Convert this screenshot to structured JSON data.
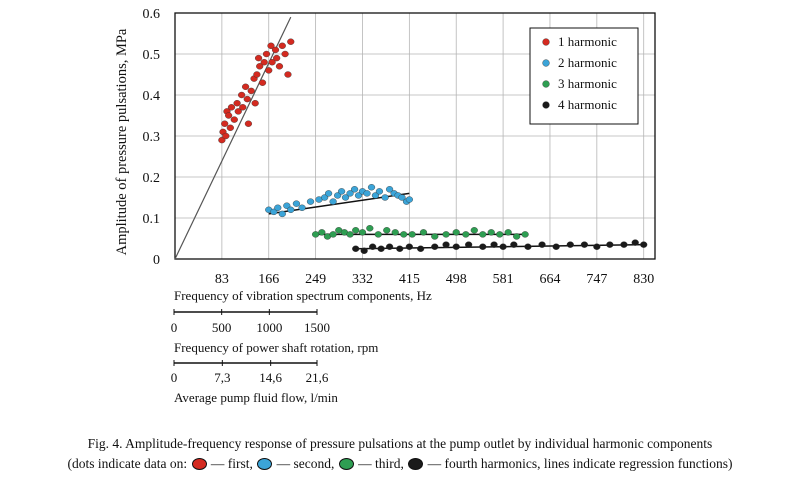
{
  "chart_data": {
    "type": "scatter",
    "ylabel": "Amplitude of pressure pulsations, MPa",
    "xlabel": "Frequency of vibration spectrum components, Hz",
    "xlim": [
      0,
      850
    ],
    "ylim": [
      0,
      0.6
    ],
    "x_ticks": [
      "83",
      "166",
      "249",
      "332",
      "415",
      "498",
      "581",
      "664",
      "747",
      "830"
    ],
    "y_ticks": [
      "0",
      "0.1",
      "0.2",
      "0.3",
      "0.4",
      "0.5",
      "0.6"
    ],
    "grid": true,
    "legend_position": "top-right",
    "series": [
      {
        "name": "1 harmonic",
        "color": "#d42a20",
        "points": [
          [
            83,
            0.29
          ],
          [
            85,
            0.31
          ],
          [
            88,
            0.33
          ],
          [
            90,
            0.3
          ],
          [
            92,
            0.36
          ],
          [
            95,
            0.35
          ],
          [
            98,
            0.32
          ],
          [
            100,
            0.37
          ],
          [
            105,
            0.34
          ],
          [
            110,
            0.38
          ],
          [
            112,
            0.36
          ],
          [
            118,
            0.4
          ],
          [
            120,
            0.37
          ],
          [
            125,
            0.42
          ],
          [
            128,
            0.39
          ],
          [
            130,
            0.33
          ],
          [
            135,
            0.41
          ],
          [
            140,
            0.44
          ],
          [
            142,
            0.38
          ],
          [
            145,
            0.45
          ],
          [
            148,
            0.49
          ],
          [
            150,
            0.47
          ],
          [
            155,
            0.43
          ],
          [
            158,
            0.48
          ],
          [
            162,
            0.5
          ],
          [
            166,
            0.46
          ],
          [
            170,
            0.52
          ],
          [
            172,
            0.48
          ],
          [
            178,
            0.51
          ],
          [
            180,
            0.49
          ],
          [
            185,
            0.47
          ],
          [
            190,
            0.52
          ],
          [
            195,
            0.5
          ],
          [
            200,
            0.45
          ],
          [
            205,
            0.53
          ]
        ],
        "regression": [
          [
            0,
            0
          ],
          [
            205,
            0.59
          ]
        ]
      },
      {
        "name": "2 harmonic",
        "color": "#3ba4d8",
        "points": [
          [
            166,
            0.12
          ],
          [
            175,
            0.115
          ],
          [
            182,
            0.125
          ],
          [
            190,
            0.11
          ],
          [
            198,
            0.13
          ],
          [
            205,
            0.12
          ],
          [
            215,
            0.135
          ],
          [
            225,
            0.125
          ],
          [
            240,
            0.14
          ],
          [
            255,
            0.145
          ],
          [
            265,
            0.15
          ],
          [
            272,
            0.16
          ],
          [
            280,
            0.14
          ],
          [
            288,
            0.155
          ],
          [
            295,
            0.165
          ],
          [
            302,
            0.15
          ],
          [
            310,
            0.16
          ],
          [
            318,
            0.17
          ],
          [
            325,
            0.155
          ],
          [
            332,
            0.165
          ],
          [
            340,
            0.16
          ],
          [
            348,
            0.175
          ],
          [
            355,
            0.155
          ],
          [
            362,
            0.165
          ],
          [
            372,
            0.15
          ],
          [
            380,
            0.17
          ],
          [
            388,
            0.16
          ],
          [
            395,
            0.155
          ],
          [
            402,
            0.15
          ],
          [
            410,
            0.14
          ],
          [
            415,
            0.145
          ]
        ],
        "regression": [
          [
            166,
            0.11
          ],
          [
            415,
            0.16
          ]
        ]
      },
      {
        "name": "3 harmonic",
        "color": "#2e9e52",
        "points": [
          [
            249,
            0.06
          ],
          [
            260,
            0.065
          ],
          [
            270,
            0.055
          ],
          [
            280,
            0.06
          ],
          [
            290,
            0.07
          ],
          [
            300,
            0.065
          ],
          [
            310,
            0.06
          ],
          [
            320,
            0.07
          ],
          [
            332,
            0.065
          ],
          [
            345,
            0.075
          ],
          [
            360,
            0.06
          ],
          [
            375,
            0.07
          ],
          [
            390,
            0.065
          ],
          [
            405,
            0.06
          ],
          [
            420,
            0.06
          ],
          [
            440,
            0.065
          ],
          [
            460,
            0.055
          ],
          [
            480,
            0.06
          ],
          [
            498,
            0.065
          ],
          [
            515,
            0.06
          ],
          [
            530,
            0.07
          ],
          [
            545,
            0.06
          ],
          [
            560,
            0.065
          ],
          [
            575,
            0.06
          ],
          [
            590,
            0.065
          ],
          [
            605,
            0.055
          ],
          [
            620,
            0.06
          ]
        ],
        "regression": [
          [
            249,
            0.06
          ],
          [
            620,
            0.06
          ]
        ]
      },
      {
        "name": "4 harmonic",
        "color": "#1a1a1a",
        "points": [
          [
            320,
            0.025
          ],
          [
            335,
            0.02
          ],
          [
            350,
            0.03
          ],
          [
            365,
            0.025
          ],
          [
            380,
            0.03
          ],
          [
            398,
            0.025
          ],
          [
            415,
            0.03
          ],
          [
            435,
            0.025
          ],
          [
            460,
            0.03
          ],
          [
            480,
            0.035
          ],
          [
            498,
            0.03
          ],
          [
            520,
            0.035
          ],
          [
            545,
            0.03
          ],
          [
            565,
            0.035
          ],
          [
            581,
            0.03
          ],
          [
            600,
            0.035
          ],
          [
            625,
            0.03
          ],
          [
            650,
            0.035
          ],
          [
            675,
            0.03
          ],
          [
            700,
            0.035
          ],
          [
            725,
            0.035
          ],
          [
            747,
            0.03
          ],
          [
            770,
            0.035
          ],
          [
            795,
            0.035
          ],
          [
            815,
            0.04
          ],
          [
            830,
            0.035
          ]
        ],
        "regression": [
          [
            320,
            0.025
          ],
          [
            830,
            0.035
          ]
        ]
      }
    ],
    "secondary_axes": [
      {
        "label": "Frequency of power shaft rotation, rpm",
        "ticks": [
          "0",
          "500",
          "1000",
          "1500"
        ],
        "values": [
          0,
          500,
          1000,
          1500
        ],
        "range": [
          0,
          1500
        ]
      },
      {
        "label": "Average pump fluid flow, l/min",
        "ticks": [
          "0",
          "7,3",
          "14,6",
          "21,6"
        ],
        "values": [
          0,
          7.3,
          14.6,
          21.6
        ],
        "range": [
          0,
          21.6
        ]
      }
    ]
  },
  "caption": {
    "line1": "Fig. 4. Amplitude-frequency response of pressure pulsations at the pump outlet by individual harmonic components",
    "line2_prefix": "(dots indicate data on:",
    "first": "— first,",
    "second": "— second,",
    "third": "— third,",
    "fourth": "— fourth harmonics, lines indicate regression functions)"
  }
}
